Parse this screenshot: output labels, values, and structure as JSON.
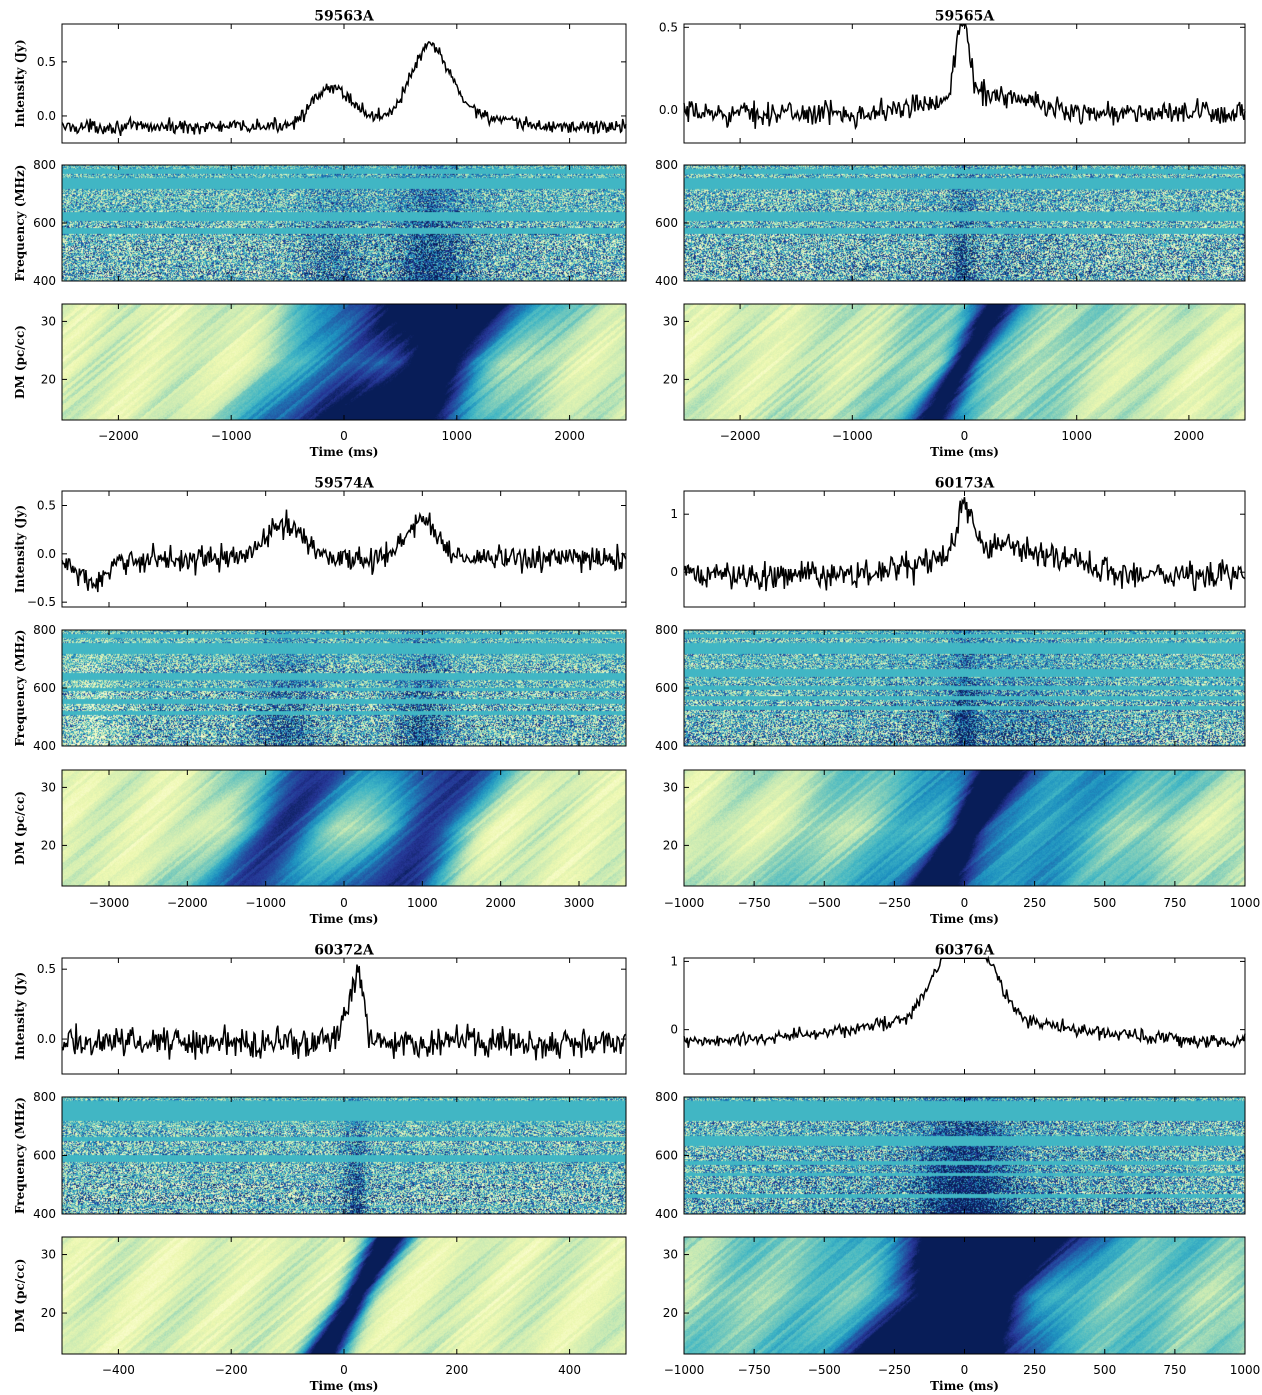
{
  "chart_data": [
    {
      "type": "line",
      "title": "59563A",
      "intensity": {
        "ylabel": "Intensity (Jy)",
        "yticks": [
          "0.0",
          "0.5"
        ],
        "yticks_values": [
          0.0,
          0.5
        ],
        "ylim": [
          -0.25,
          0.85
        ],
        "baseline": -0.1,
        "noise": 0.045,
        "components": [
          {
            "center": -100,
            "amp": 0.35,
            "width": 180
          },
          {
            "center": 760,
            "amp": 0.55,
            "width": 160
          },
          {
            "center": 850,
            "amp": 0.2,
            "width": 350
          }
        ]
      },
      "spectrogram": {
        "ylabel": "Frequency (MHz)",
        "yticks": [
          "400",
          "600",
          "800"
        ],
        "ylim": [
          400,
          800
        ],
        "masked_bands_mhz": [
          [
            770,
            785
          ],
          [
            720,
            755
          ],
          [
            610,
            635
          ],
          [
            565,
            580
          ]
        ]
      },
      "dm": {
        "ylabel": "DM (pc/cc)",
        "yticks": [
          "20",
          "30"
        ],
        "ylim": [
          13,
          33
        ]
      },
      "xlabel": "Time (ms)",
      "xticks": [
        "−2000",
        "−1000",
        "0",
        "1000",
        "2000"
      ],
      "xticks_values": [
        -2000,
        -1000,
        0,
        1000,
        2000
      ],
      "xlim": [
        -2500,
        2500
      ]
    },
    {
      "type": "line",
      "title": "59565A",
      "intensity": {
        "ylabel": "",
        "yticks": [
          "0.0",
          "0.5"
        ],
        "yticks_values": [
          0.0,
          0.5
        ],
        "ylim": [
          -0.2,
          0.52
        ],
        "baseline": -0.02,
        "noise": 0.05,
        "components": [
          {
            "center": -20,
            "amp": 0.45,
            "width": 60
          },
          {
            "center": 150,
            "amp": 0.12,
            "width": 400
          }
        ]
      },
      "spectrogram": {
        "ylabel": "",
        "yticks": [
          "400",
          "600",
          "800"
        ],
        "ylim": [
          400,
          800
        ],
        "masked_bands_mhz": [
          [
            770,
            785
          ],
          [
            720,
            755
          ],
          [
            610,
            635
          ],
          [
            565,
            580
          ]
        ]
      },
      "dm": {
        "ylabel": "",
        "yticks": [
          "20",
          "30"
        ],
        "ylim": [
          13,
          33
        ]
      },
      "xlabel": "",
      "xticks": [
        "−2000",
        "−1000",
        "0",
        "1000",
        "2000"
      ],
      "xticks_values": [
        -2000,
        -1000,
        0,
        1000,
        2000
      ],
      "xlim": [
        -2500,
        2500
      ]
    },
    {
      "type": "line",
      "title": "59574A",
      "intensity": {
        "ylabel": "Intensity (Jy)",
        "yticks": [
          "−0.5",
          "0.0",
          "0.5"
        ],
        "yticks_values": [
          -0.5,
          0.0,
          0.5
        ],
        "ylim": [
          -0.55,
          0.65
        ],
        "baseline": -0.05,
        "noise": 0.09,
        "components": [
          {
            "center": -750,
            "amp": 0.35,
            "width": 250
          },
          {
            "center": 1000,
            "amp": 0.4,
            "width": 200
          },
          {
            "center": -3200,
            "amp": -0.25,
            "width": 200
          }
        ]
      },
      "spectrogram": {
        "ylabel": "Frequency (MHz)",
        "yticks": [
          "400",
          "600",
          "800"
        ],
        "ylim": [
          400,
          800
        ],
        "masked_bands_mhz": [
          [
            775,
            785
          ],
          [
            720,
            755
          ],
          [
            630,
            650
          ],
          [
            590,
            600
          ],
          [
            545,
            560
          ],
          [
            510,
            520
          ]
        ]
      },
      "dm": {
        "ylabel": "DM (pc/cc)",
        "yticks": [
          "20",
          "30"
        ],
        "ylim": [
          13,
          33
        ]
      },
      "xlabel": "Time (ms)",
      "xticks": [
        "−3000",
        "−2000",
        "−1000",
        "0",
        "1000",
        "2000",
        "3000"
      ],
      "xticks_values": [
        -3000,
        -2000,
        -1000,
        0,
        1000,
        2000,
        3000
      ],
      "xlim": [
        -3600,
        3600
      ]
    },
    {
      "type": "line",
      "title": "60173A",
      "intensity": {
        "ylabel": "",
        "yticks": [
          "0",
          "1"
        ],
        "yticks_values": [
          0,
          1
        ],
        "ylim": [
          -0.6,
          1.4
        ],
        "baseline": -0.05,
        "noise": 0.17,
        "components": [
          {
            "center": 0,
            "amp": 0.8,
            "width": 25
          },
          {
            "center": 120,
            "amp": 0.5,
            "width": 200
          }
        ]
      },
      "spectrogram": {
        "ylabel": "",
        "yticks": [
          "400",
          "600",
          "800"
        ],
        "ylim": [
          400,
          800
        ],
        "masked_bands_mhz": [
          [
            775,
            785
          ],
          [
            720,
            755
          ],
          [
            640,
            665
          ],
          [
            595,
            605
          ],
          [
            560,
            570
          ],
          [
            525,
            535
          ]
        ]
      },
      "dm": {
        "ylabel": "",
        "yticks": [
          "20",
          "30"
        ],
        "ylim": [
          13,
          33
        ]
      },
      "xlabel": "Time (ms)",
      "xticks": [
        "−1000",
        "−750",
        "−500",
        "−250",
        "0",
        "250",
        "500",
        "750",
        "1000"
      ],
      "xticks_values": [
        -1000,
        -750,
        -500,
        -250,
        0,
        250,
        500,
        750,
        1000
      ],
      "xlim": [
        -1000,
        1000
      ]
    },
    {
      "type": "line",
      "title": "60372A",
      "intensity": {
        "ylabel": "Intensity (Jy)",
        "yticks": [
          "0.0",
          "0.5"
        ],
        "yticks_values": [
          0.0,
          0.5
        ],
        "ylim": [
          -0.25,
          0.58
        ],
        "baseline": -0.02,
        "noise": 0.075,
        "components": [
          {
            "center": 25,
            "amp": 0.45,
            "width": 10
          },
          {
            "center": 5,
            "amp": 0.2,
            "width": 10
          }
        ]
      },
      "spectrogram": {
        "ylabel": "Frequency (MHz)",
        "yticks": [
          "400",
          "600",
          "800"
        ],
        "ylim": [
          400,
          800
        ],
        "masked_bands_mhz": [
          [
            720,
            785
          ],
          [
            650,
            660
          ],
          [
            580,
            600
          ]
        ]
      },
      "dm": {
        "ylabel": "DM (pc/cc)",
        "yticks": [
          "20",
          "30"
        ],
        "ylim": [
          13,
          33
        ]
      },
      "xlabel": "Time (ms)",
      "xticks": [
        "−400",
        "−200",
        "0",
        "200",
        "400"
      ],
      "xticks_values": [
        -400,
        -200,
        0,
        200,
        400
      ],
      "xlim": [
        -500,
        500
      ]
    },
    {
      "type": "line",
      "title": "60376A",
      "intensity": {
        "ylabel": "",
        "yticks": [
          "0",
          "1"
        ],
        "yticks_values": [
          0,
          1
        ],
        "ylim": [
          -0.65,
          1.05
        ],
        "baseline": -0.2,
        "noise": 0.07,
        "components": [
          {
            "center": -60,
            "amp": 0.85,
            "width": 70
          },
          {
            "center": 60,
            "amp": 0.85,
            "width": 70
          },
          {
            "center": 0,
            "amp": 0.35,
            "width": 400
          }
        ]
      },
      "spectrogram": {
        "ylabel": "",
        "yticks": [
          "400",
          "600",
          "800"
        ],
        "ylim": [
          400,
          800
        ],
        "masked_bands_mhz": [
          [
            720,
            785
          ],
          [
            635,
            665
          ],
          [
            570,
            580
          ],
          [
            530,
            540
          ],
          [
            455,
            465
          ]
        ]
      },
      "dm": {
        "ylabel": "",
        "yticks": [
          "20",
          "30"
        ],
        "ylim": [
          13,
          33
        ]
      },
      "xlabel": "Time (ms)",
      "xticks": [
        "−1000",
        "−750",
        "−500",
        "−250",
        "0",
        "250",
        "500",
        "750",
        "1000"
      ],
      "xticks_values": [
        -1000,
        -750,
        -500,
        -250,
        0,
        250,
        500,
        750,
        1000
      ],
      "xlim": [
        -1000,
        1000
      ]
    }
  ],
  "colors": {
    "line": "#000000",
    "mask": "#41b6c4",
    "cmap": [
      "#ffffd9",
      "#edf8b1",
      "#c7e9b4",
      "#7fcdbb",
      "#41b6c4",
      "#1d91c0",
      "#225ea8",
      "#253494",
      "#081d58"
    ]
  }
}
